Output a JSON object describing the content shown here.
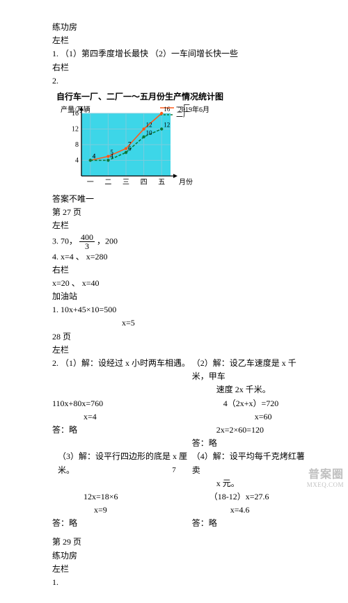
{
  "top": {
    "l1": "练功房",
    "l2": "左栏",
    "l3": "1. （1）第四季度增长最快 （2）一车间增长快一些",
    "l4": "右栏",
    "l5": "2."
  },
  "chart": {
    "title": "自行车一厂、二厂一～五月份生产情况统计图",
    "ylabel": "产量/万辆",
    "xlabel": "月份",
    "date": "2019年6月",
    "legend": {
      "a": "一厂",
      "b": "二厂"
    },
    "x_categories": [
      "一",
      "二",
      "三",
      "四",
      "五"
    ],
    "y_ticks": [
      4,
      8,
      12,
      16
    ],
    "series_a": {
      "name": "一厂",
      "values": [
        4,
        5,
        7,
        12,
        16
      ],
      "color": "#ff5a1a"
    },
    "series_b": {
      "name": "二厂",
      "values": [
        4,
        4,
        6,
        10,
        12
      ],
      "color": "#0a7a3a"
    },
    "point_labels": [
      "4",
      "4",
      "5",
      "4",
      "7",
      "6",
      "12",
      "10",
      "16",
      "12"
    ],
    "style": {
      "plot_bg": "#3dd6e8",
      "grid_color": "#7accdc",
      "axis_color": "#000000",
      "font_size": 10,
      "ylim": [
        0,
        16
      ],
      "xlim": [
        0,
        5
      ],
      "ytick_step": 4
    },
    "note": "答案不唯一"
  },
  "p27": {
    "head": "第 27 页",
    "left": "左栏",
    "q3_pre": "3. 70，",
    "q3_frac_num": "400",
    "q3_frac_den": "3",
    "q3_post": "，200",
    "q4": "4. x=4 、 x=280",
    "right": "右栏",
    "r1": "x=20 、 x=40",
    "gas": "加油站",
    "g1": "1. 10x+45×10=500",
    "g1s": "x=5"
  },
  "p28": {
    "head": "28 页",
    "left": "左栏",
    "q2_1a": "2. （1）解：设经过 x 小时两车相遇。",
    "q2_2a": "（2）解：设乙车速度是 x 千米，甲车",
    "q2_2b": "速度 2x 千米。",
    "eq1a": "110x+80x=760",
    "eq1b": "x=4",
    "eq2a": "4（2x+x）=720",
    "eq2b": "x=60",
    "eq2c": "2x=2×60=120",
    "ans": "答：略",
    "q3a": "（3）解：设平行四边形的底是 x 厘米。",
    "q4a": "（4）解：设平均每千克烤红薯卖",
    "q4b": "x 元。",
    "eq3a": "12x=18×6",
    "eq3b": "x=9",
    "eq4a": "（18-12）x=27.6",
    "eq4b": "x=4.6"
  },
  "p29": {
    "head": "第 29 页",
    "l1": "练功房",
    "l2": "左栏",
    "l3": "1."
  },
  "page_number": "7",
  "watermark": {
    "top": "普案圈",
    "bottom": "MXEQ.COM"
  }
}
